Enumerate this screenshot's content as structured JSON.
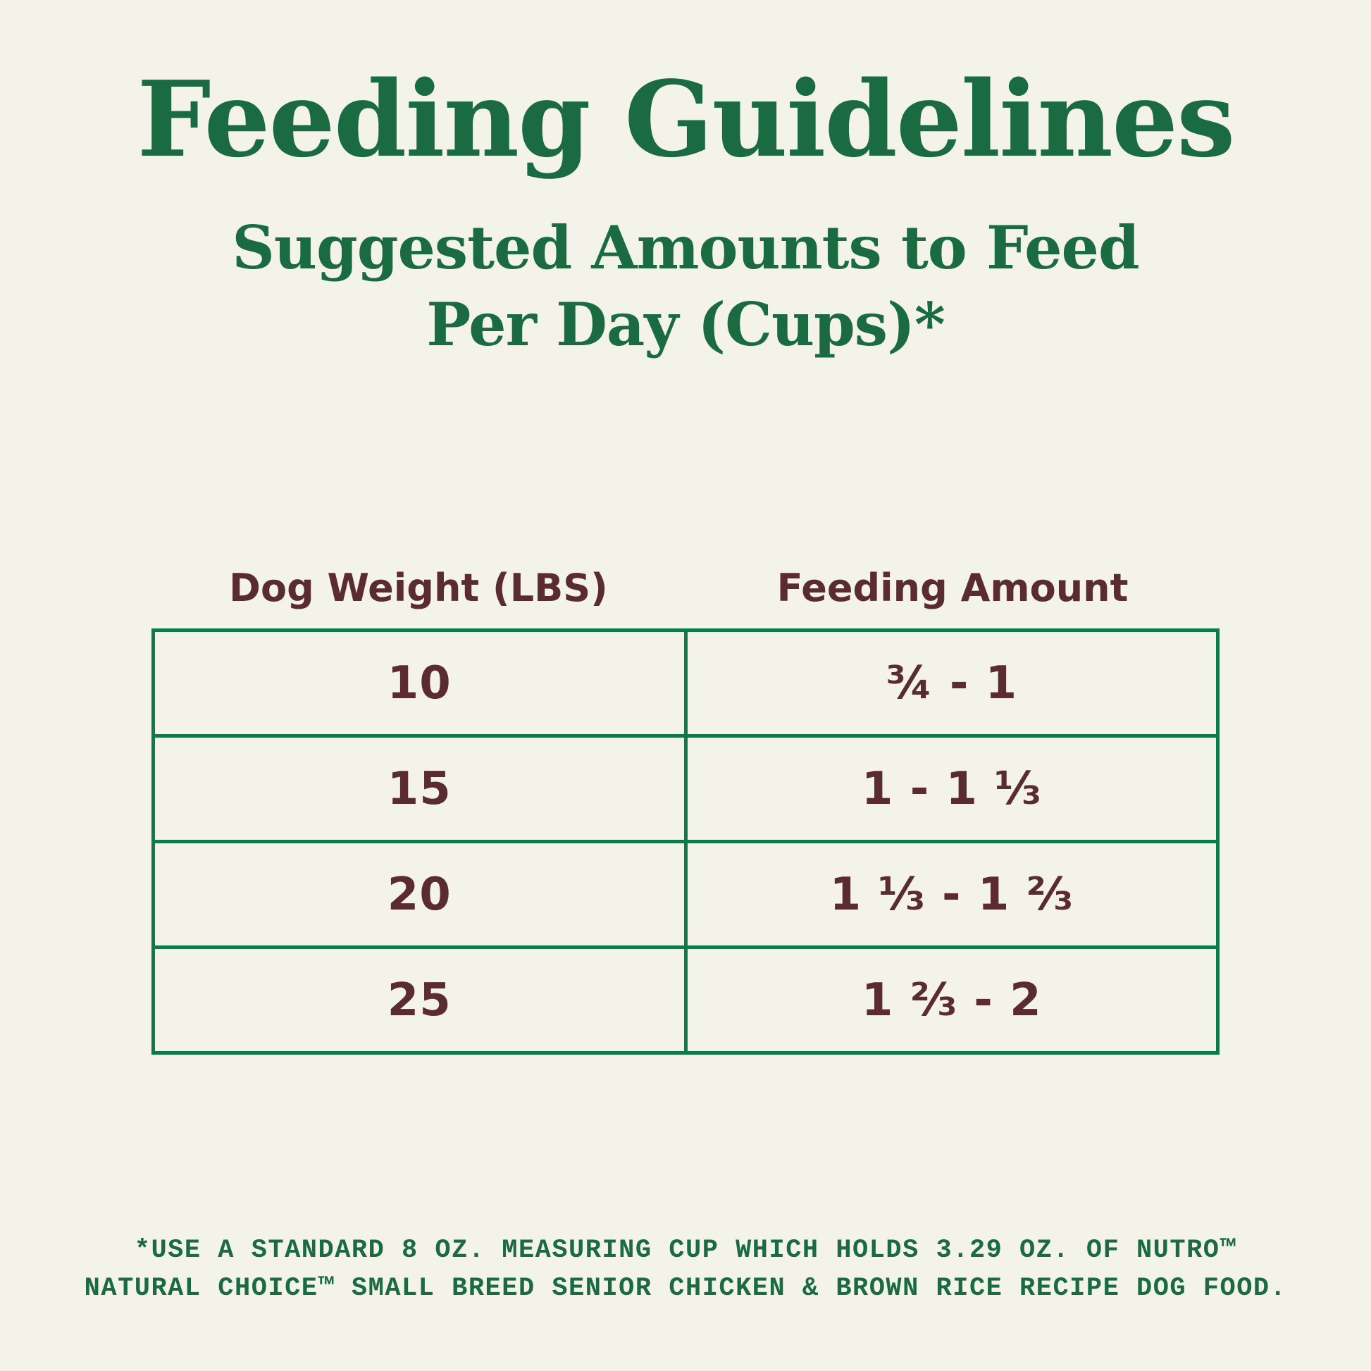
{
  "colors": {
    "background": "#f3f3e9",
    "heading_green": "#1a6b42",
    "table_border_green": "#0e7a49",
    "table_text_maroon": "#5a2b30"
  },
  "header": {
    "title": "Feeding Guidelines",
    "subtitle_line1": "Suggested Amounts to Feed",
    "subtitle_line2": "Per Day (Cups)*"
  },
  "table": {
    "col1_header": "Dog Weight (LBS)",
    "col2_header": "Feeding Amount",
    "rows": [
      {
        "weight": "10",
        "amount": "¾ - 1"
      },
      {
        "weight": "15",
        "amount": "1 - 1 ⅓"
      },
      {
        "weight": "20",
        "amount": "1 ⅓ - 1 ⅔"
      },
      {
        "weight": "25",
        "amount": "1 ⅔ - 2"
      }
    ]
  },
  "footnote": {
    "line1": "*USE A STANDARD 8 OZ. MEASURING CUP WHICH HOLDS 3.29 OZ. OF NUTRO™",
    "line2": "NATURAL CHOICE™ SMALL BREED SENIOR CHICKEN & BROWN RICE RECIPE DOG FOOD."
  },
  "chart_data": {
    "type": "table",
    "title": "Feeding Guidelines",
    "subtitle": "Suggested Amounts to Feed Per Day (Cups)*",
    "columns": [
      "Dog Weight (LBS)",
      "Feeding Amount"
    ],
    "rows": [
      [
        "10",
        "¾ - 1"
      ],
      [
        "15",
        "1 - 1 ⅓"
      ],
      [
        "20",
        "1 ⅓ - 1 ⅔"
      ],
      [
        "25",
        "1 ⅔ - 2"
      ]
    ],
    "weights_lbs": [
      10,
      15,
      20,
      25
    ],
    "feeding_amount_cups_min": [
      0.75,
      1,
      1.333,
      1.667
    ],
    "feeding_amount_cups_max": [
      1,
      1.333,
      1.667,
      2
    ],
    "footnote": "*USE A STANDARD 8 OZ. MEASURING CUP WHICH HOLDS 3.29 OZ. OF NUTRO™ NATURAL CHOICE™ SMALL BREED SENIOR CHICKEN & BROWN RICE RECIPE DOG FOOD.",
    "legend_position": "none",
    "grid": "table-borders"
  }
}
